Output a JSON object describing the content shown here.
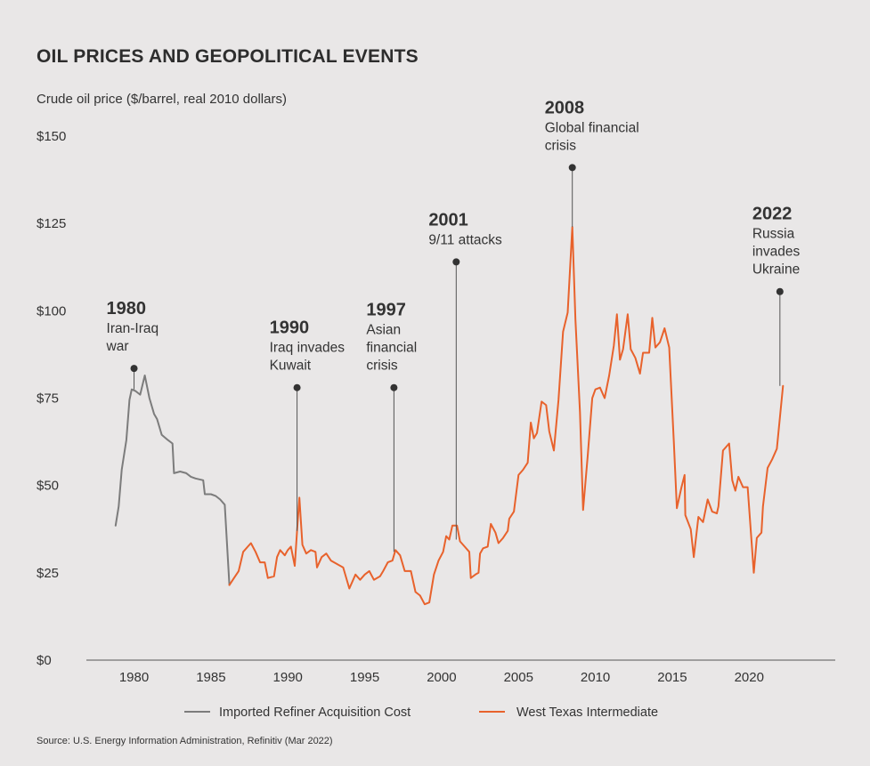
{
  "chart_data": {
    "type": "line",
    "title": "OIL PRICES AND GEOPOLITICAL EVENTS",
    "ylabel": "Crude oil price ($/barrel, real 2010 dollars)",
    "xlabel": "",
    "xlim": [
      1976.9,
      2025.6
    ],
    "ylim": [
      0,
      150
    ],
    "yticks": [
      0,
      25,
      50,
      75,
      100,
      125,
      150
    ],
    "ytick_labels": [
      "$0",
      "$25",
      "$50",
      "$75",
      "$100",
      "$125",
      "$150"
    ],
    "xticks": [
      1980,
      1985,
      1990,
      1995,
      2000,
      2005,
      2010,
      2015,
      2020
    ],
    "xtick_labels": [
      "1980",
      "1985",
      "1990",
      "1995",
      "2000",
      "2005",
      "2010",
      "2015",
      "2020"
    ],
    "series": [
      {
        "name": "Imported Refiner Acquisition Cost",
        "color": "#7c7c7c",
        "points": [
          [
            1978.8,
            38.5
          ],
          [
            1979.0,
            44.0
          ],
          [
            1979.2,
            54.5
          ],
          [
            1979.5,
            63.0
          ],
          [
            1979.7,
            74.5
          ],
          [
            1979.85,
            77.5
          ],
          [
            1980.1,
            77.0
          ],
          [
            1980.4,
            76.0
          ],
          [
            1980.7,
            81.5
          ],
          [
            1981.0,
            75.0
          ],
          [
            1981.3,
            70.5
          ],
          [
            1981.5,
            69.0
          ],
          [
            1981.8,
            64.5
          ],
          [
            1982.2,
            63.0
          ],
          [
            1982.5,
            62.0
          ],
          [
            1982.6,
            53.5
          ],
          [
            1983.0,
            54.0
          ],
          [
            1983.4,
            53.5
          ],
          [
            1983.7,
            52.5
          ],
          [
            1984.0,
            52.0
          ],
          [
            1984.5,
            51.5
          ],
          [
            1984.6,
            47.5
          ],
          [
            1985.0,
            47.5
          ],
          [
            1985.3,
            47.0
          ],
          [
            1985.6,
            46.0
          ],
          [
            1985.9,
            44.5
          ],
          [
            1986.2,
            21.5
          ]
        ]
      },
      {
        "name": "West Texas Intermediate",
        "color": "#e8622c",
        "points": [
          [
            1986.2,
            21.5
          ],
          [
            1986.5,
            23.5
          ],
          [
            1986.8,
            25.5
          ],
          [
            1987.1,
            31.0
          ],
          [
            1987.4,
            32.5
          ],
          [
            1987.6,
            33.5
          ],
          [
            1987.9,
            31.0
          ],
          [
            1988.2,
            28.0
          ],
          [
            1988.5,
            28.0
          ],
          [
            1988.7,
            23.5
          ],
          [
            1989.1,
            24.0
          ],
          [
            1989.3,
            29.5
          ],
          [
            1989.5,
            31.5
          ],
          [
            1989.8,
            30.0
          ],
          [
            1990.0,
            31.5
          ],
          [
            1990.2,
            32.5
          ],
          [
            1990.45,
            27.0
          ],
          [
            1990.6,
            37.0
          ],
          [
            1990.75,
            46.5
          ],
          [
            1990.95,
            33.0
          ],
          [
            1991.2,
            30.5
          ],
          [
            1991.5,
            31.5
          ],
          [
            1991.8,
            31.0
          ],
          [
            1991.9,
            26.5
          ],
          [
            1992.2,
            29.5
          ],
          [
            1992.5,
            30.5
          ],
          [
            1992.8,
            28.5
          ],
          [
            1993.2,
            27.5
          ],
          [
            1993.6,
            26.5
          ],
          [
            1994.0,
            20.5
          ],
          [
            1994.4,
            24.5
          ],
          [
            1994.7,
            23.0
          ],
          [
            1995.0,
            24.5
          ],
          [
            1995.3,
            25.5
          ],
          [
            1995.6,
            23.0
          ],
          [
            1996.0,
            24.0
          ],
          [
            1996.2,
            25.5
          ],
          [
            1996.5,
            28.0
          ],
          [
            1996.8,
            28.5
          ],
          [
            1997.0,
            31.5
          ],
          [
            1997.3,
            30.0
          ],
          [
            1997.6,
            25.5
          ],
          [
            1998.0,
            25.5
          ],
          [
            1998.3,
            19.5
          ],
          [
            1998.6,
            18.5
          ],
          [
            1998.9,
            16.0
          ],
          [
            1999.2,
            16.5
          ],
          [
            1999.5,
            24.5
          ],
          [
            1999.8,
            28.5
          ],
          [
            2000.1,
            31.0
          ],
          [
            2000.3,
            35.5
          ],
          [
            2000.5,
            34.5
          ],
          [
            2000.7,
            38.5
          ],
          [
            2001.0,
            38.5
          ],
          [
            2001.2,
            34.0
          ],
          [
            2001.5,
            32.5
          ],
          [
            2001.8,
            31.0
          ],
          [
            2001.9,
            23.5
          ],
          [
            2002.2,
            24.5
          ],
          [
            2002.4,
            25.0
          ],
          [
            2002.5,
            30.5
          ],
          [
            2002.7,
            32.0
          ],
          [
            2003.0,
            32.5
          ],
          [
            2003.2,
            39.0
          ],
          [
            2003.5,
            36.5
          ],
          [
            2003.7,
            33.5
          ],
          [
            2004.0,
            35.0
          ],
          [
            2004.3,
            37.0
          ],
          [
            2004.4,
            40.5
          ],
          [
            2004.7,
            42.5
          ],
          [
            2005.0,
            53.0
          ],
          [
            2005.3,
            54.5
          ],
          [
            2005.6,
            56.5
          ],
          [
            2005.8,
            68.0
          ],
          [
            2006.0,
            63.5
          ],
          [
            2006.2,
            65.0
          ],
          [
            2006.5,
            74.0
          ],
          [
            2006.8,
            73.0
          ],
          [
            2007.0,
            65.5
          ],
          [
            2007.3,
            60.0
          ],
          [
            2007.6,
            74.5
          ],
          [
            2007.9,
            94.0
          ],
          [
            2008.2,
            99.5
          ],
          [
            2008.5,
            124.0
          ],
          [
            2008.7,
            97.5
          ],
          [
            2009.0,
            71.0
          ],
          [
            2009.2,
            43.0
          ],
          [
            2009.5,
            58.5
          ],
          [
            2009.8,
            75.0
          ],
          [
            2010.0,
            77.5
          ],
          [
            2010.3,
            78.0
          ],
          [
            2010.6,
            75.0
          ],
          [
            2010.9,
            81.5
          ],
          [
            2011.2,
            90.0
          ],
          [
            2011.4,
            99.0
          ],
          [
            2011.6,
            86.0
          ],
          [
            2011.8,
            89.0
          ],
          [
            2012.1,
            99.0
          ],
          [
            2012.3,
            89.0
          ],
          [
            2012.6,
            86.5
          ],
          [
            2012.9,
            82.0
          ],
          [
            2013.1,
            88.0
          ],
          [
            2013.5,
            88.0
          ],
          [
            2013.7,
            98.0
          ],
          [
            2013.9,
            89.5
          ],
          [
            2014.2,
            91.0
          ],
          [
            2014.5,
            95.0
          ],
          [
            2014.8,
            89.5
          ],
          [
            2015.1,
            62.5
          ],
          [
            2015.3,
            43.5
          ],
          [
            2015.6,
            49.5
          ],
          [
            2015.8,
            53.0
          ],
          [
            2015.85,
            41.5
          ],
          [
            2016.2,
            37.5
          ],
          [
            2016.4,
            29.5
          ],
          [
            2016.7,
            41.0
          ],
          [
            2017.0,
            39.5
          ],
          [
            2017.3,
            46.0
          ],
          [
            2017.6,
            42.5
          ],
          [
            2017.9,
            42.0
          ],
          [
            2018.0,
            44.0
          ],
          [
            2018.3,
            60.0
          ],
          [
            2018.7,
            62.0
          ],
          [
            2018.9,
            51.5
          ],
          [
            2019.1,
            48.5
          ],
          [
            2019.3,
            52.5
          ],
          [
            2019.6,
            49.5
          ],
          [
            2019.9,
            49.5
          ],
          [
            2020.3,
            25.0
          ],
          [
            2020.5,
            35.0
          ],
          [
            2020.8,
            36.5
          ],
          [
            2020.9,
            44.0
          ],
          [
            2021.2,
            55.0
          ],
          [
            2021.5,
            57.5
          ],
          [
            2021.8,
            60.5
          ],
          [
            2022.2,
            78.5
          ]
        ]
      }
    ],
    "annotations": [
      {
        "year_label": "1980",
        "lines": [
          "Iran-Iraq",
          "war"
        ],
        "x": 1980.0,
        "y_top": 83.5,
        "y_bottom": 77.5
      },
      {
        "year_label": "1990",
        "lines": [
          "Iraq invades",
          "Kuwait"
        ],
        "x": 1990.6,
        "y_top": 78.0,
        "y_bottom": 37.0
      },
      {
        "year_label": "1997",
        "lines": [
          "Asian",
          "financial",
          "crisis"
        ],
        "x": 1996.9,
        "y_top": 78.0,
        "y_bottom": 31.0
      },
      {
        "year_label": "2001",
        "lines": [
          "9/11 attacks"
        ],
        "x": 2000.95,
        "y_top": 114.0,
        "y_bottom": 34.5
      },
      {
        "year_label": "2008",
        "lines": [
          "Global financial",
          "crisis"
        ],
        "x": 2008.5,
        "y_top": 141.0,
        "y_bottom": 124.0
      },
      {
        "year_label": "2022",
        "lines": [
          "Russia",
          "invades",
          "Ukraine"
        ],
        "x": 2022.0,
        "y_top": 105.5,
        "y_bottom": 78.5
      }
    ],
    "legend": "bottom-center"
  },
  "source": "Source: U.S. Energy Information Administration, Refinitiv (Mar 2022)"
}
